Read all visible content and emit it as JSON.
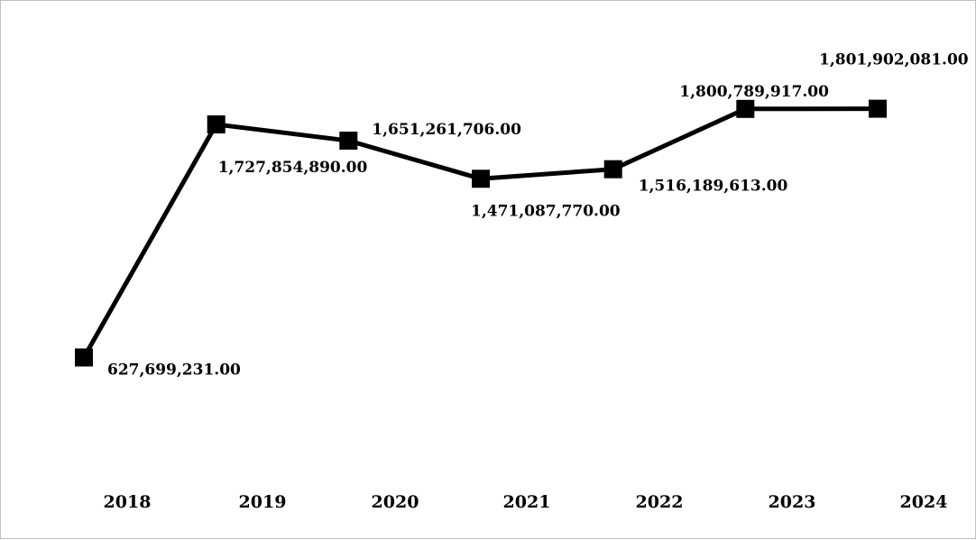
{
  "chart_data": {
    "type": "line",
    "categories": [
      "2018",
      "2019",
      "2020",
      "2021",
      "2022",
      "2023",
      "2024"
    ],
    "series": [
      {
        "values": [
          627699231.0,
          1727854890.0,
          1651261706.0,
          1471087770.0,
          1516189613.0,
          1800789917.0,
          1801902081.0
        ],
        "data_labels": [
          "627,699,231.00",
          "1,727,854,890.00",
          "1,651,261,706.00",
          "1,471,087,770.00",
          "1,516,189,613.00",
          "1,800,789,917.00",
          "1,801,902,081.00"
        ],
        "color": "#000000",
        "marker": "square"
      }
    ],
    "title": "",
    "xlabel": "",
    "ylabel": "",
    "grid": false,
    "legend": "none"
  }
}
